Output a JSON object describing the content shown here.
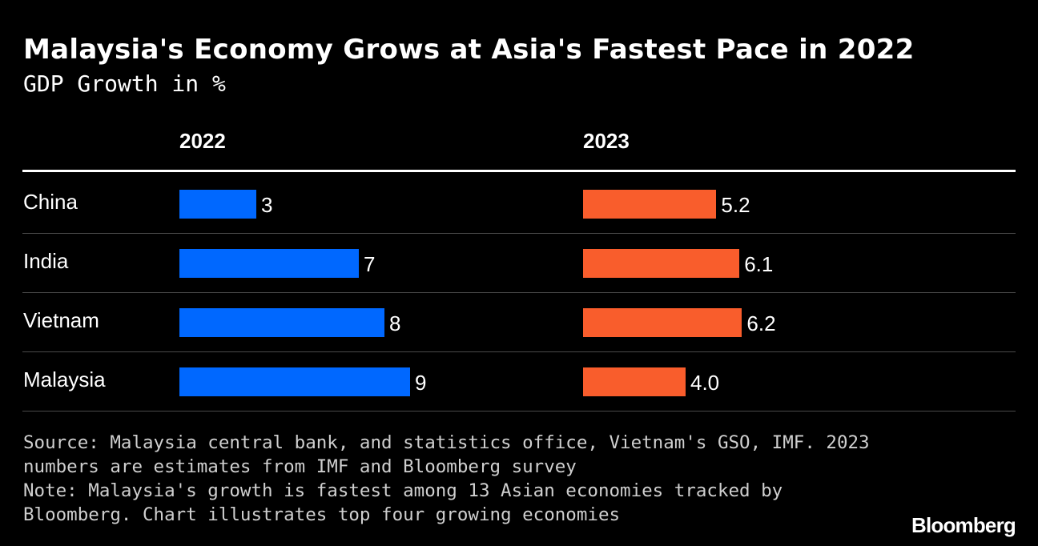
{
  "header": {
    "title": "Malaysia's Economy Grows at Asia's Fastest Pace in 2022",
    "subtitle": "GDP Growth in %"
  },
  "chart_data": {
    "type": "bar",
    "orientation": "horizontal",
    "title": "Malaysia's Economy Grows at Asia's Fastest Pace in 2022",
    "subtitle": "GDP Growth in %",
    "categories": [
      "China",
      "India",
      "Vietnam",
      "Malaysia"
    ],
    "series": [
      {
        "name": "2022",
        "values": [
          3,
          7,
          8,
          9
        ],
        "labels": [
          "3",
          "7",
          "8",
          "9"
        ],
        "color": "#0068ff"
      },
      {
        "name": "2023",
        "values": [
          5.2,
          6.1,
          6.2,
          4.0
        ],
        "labels": [
          "5.2",
          "6.1",
          "6.2",
          "4.0"
        ],
        "color": "#f95d2c"
      }
    ],
    "xlim": [
      0,
      10
    ],
    "grid": false,
    "legend": "none"
  },
  "footer": {
    "source": "Source: Malaysia central bank, and statistics office, Vietnam's GSO, IMF. 2023 numbers are estimates from IMF and Bloomberg survey",
    "note": "Note: Malaysia's growth is fastest among 13 Asian economies tracked by Bloomberg. Chart illustrates top four growing economies",
    "logo": "Bloomberg"
  }
}
